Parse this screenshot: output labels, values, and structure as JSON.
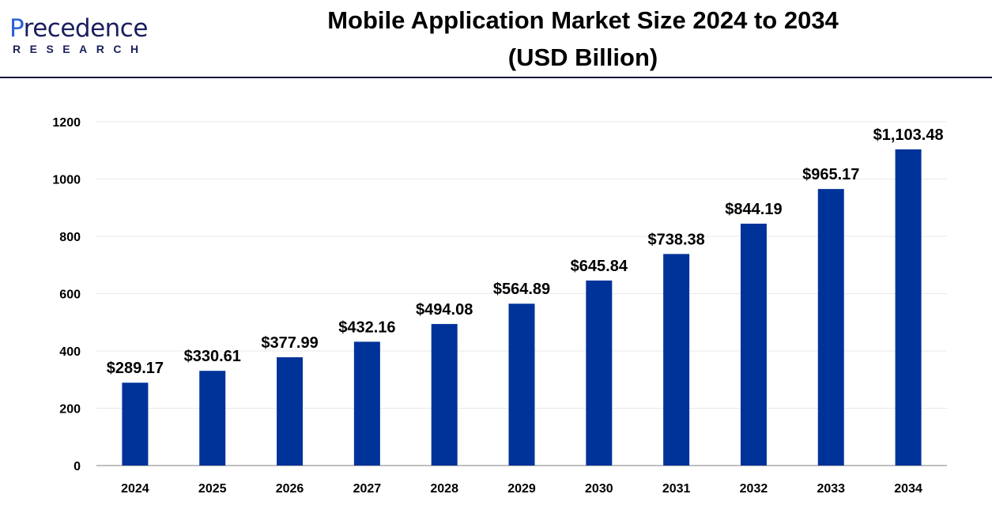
{
  "logo": {
    "text_top": "Precedence",
    "text_bottom": "RESEARCH"
  },
  "chart_data": {
    "type": "bar",
    "title": "Mobile Application Market Size 2024 to 2034",
    "subtitle": "(USD Billion)",
    "categories": [
      "2024",
      "2025",
      "2026",
      "2027",
      "2028",
      "2029",
      "2030",
      "2031",
      "2032",
      "2033",
      "2034"
    ],
    "values": [
      289.17,
      330.61,
      377.99,
      432.16,
      494.08,
      564.89,
      645.84,
      738.38,
      844.19,
      965.17,
      1103.48
    ],
    "data_labels": [
      "$289.17",
      "$330.61",
      "$377.99",
      "$432.16",
      "$494.08",
      "$564.89",
      "$645.84",
      "$738.38",
      "$844.19",
      "$965.17",
      "$1,103.48"
    ],
    "yticks": [
      0,
      200,
      400,
      600,
      800,
      1000,
      1200
    ],
    "ylim": [
      0,
      1200
    ],
    "grid": true,
    "bar_color": "#003399",
    "xlabel": "",
    "ylabel": ""
  }
}
